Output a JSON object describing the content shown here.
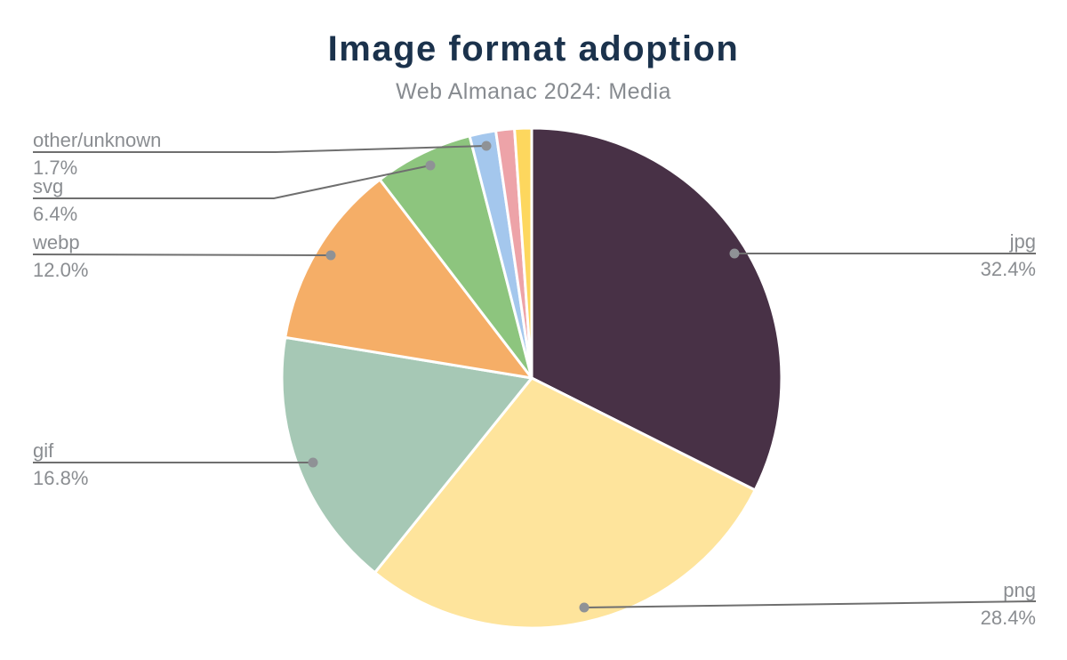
{
  "title": "Image format adoption",
  "subtitle": "Web Almanac 2024: Media",
  "colors": {
    "background": "#ffffff",
    "title_text": "#1b324c",
    "subtitle_text": "#878b90",
    "label_text": "#8a8d91",
    "leader_line": "#6f6f6f",
    "leader_dot": "#8f9296",
    "slice_border": "#ffffff"
  },
  "chart_data": {
    "type": "pie",
    "title": "Image format adoption",
    "subtitle": "Web Almanac 2024: Media",
    "unit": "%",
    "start_angle": "12-oclock",
    "direction": "clockwise",
    "legend_position": "none (leader-line labels)",
    "slices": [
      {
        "label": "jpg",
        "value": 32.4,
        "display": "32.4%",
        "color": "#483146"
      },
      {
        "label": "png",
        "value": 28.4,
        "display": "28.4%",
        "color": "#fee49c"
      },
      {
        "label": "gif",
        "value": 16.8,
        "display": "16.8%",
        "color": "#a6c8b5"
      },
      {
        "label": "webp",
        "value": 12.0,
        "display": "12.0%",
        "color": "#f5ae67"
      },
      {
        "label": "svg",
        "value": 6.4,
        "display": "6.4%",
        "color": "#8dc57e"
      },
      {
        "label": "other/unknown",
        "value": 1.7,
        "display": "1.7%",
        "color": "#a4c7ed"
      },
      {
        "label": "",
        "value": 1.2,
        "display": "",
        "color": "#eda3a8",
        "estimated": true
      },
      {
        "label": "",
        "value": 1.1,
        "display": "",
        "color": "#fdd75e",
        "estimated": true
      }
    ]
  }
}
